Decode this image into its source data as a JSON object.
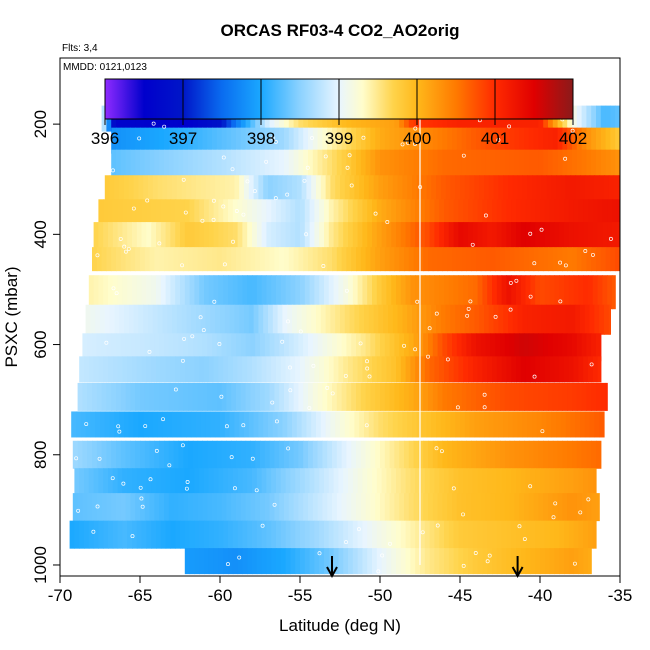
{
  "chart_data": {
    "type": "heatmap",
    "title": "ORCAS RF03-4 CO2_AO2orig",
    "flights_note": "Flts: 3,4",
    "date_note": "MMDD: 0121,0123",
    "xlabel": "Latitude (deg N)",
    "ylabel": "PSXC (mbar)",
    "xlim": [
      -70,
      -35
    ],
    "ylim": [
      1020,
      80
    ],
    "x_ticks": [
      -70,
      -65,
      -60,
      -55,
      -50,
      -45,
      -40,
      -35
    ],
    "x_tick_labels": [
      "-70",
      "-65",
      "-60",
      "-55",
      "-50",
      "-45",
      "-40",
      "-35"
    ],
    "y_ticks": [
      200,
      400,
      600,
      800,
      1000
    ],
    "y_tick_labels": [
      "200",
      "400",
      "600",
      "800",
      "1000"
    ],
    "colorbar": {
      "min": 396,
      "max": 402,
      "ticks": [
        396,
        397,
        398,
        399,
        400,
        401,
        402
      ],
      "tick_labels": [
        "396",
        "397",
        "398",
        "399",
        "400",
        "401",
        "402"
      ],
      "stops": [
        {
          "v": 396.0,
          "c": "#8f2bff"
        },
        {
          "v": 396.5,
          "c": "#0000cc"
        },
        {
          "v": 397.0,
          "c": "#0016c8"
        },
        {
          "v": 397.5,
          "c": "#0a6cf0"
        },
        {
          "v": 398.0,
          "c": "#1aa8ff"
        },
        {
          "v": 398.5,
          "c": "#8cd2ff"
        },
        {
          "v": 399.0,
          "c": "#e8f5ff"
        },
        {
          "v": 399.3,
          "c": "#fffdcc"
        },
        {
          "v": 399.7,
          "c": "#ffd34a"
        },
        {
          "v": 400.0,
          "c": "#ffb81a"
        },
        {
          "v": 400.5,
          "c": "#ff7a00"
        },
        {
          "v": 401.0,
          "c": "#ff2a00"
        },
        {
          "v": 401.5,
          "c": "#e00000"
        },
        {
          "v": 402.0,
          "c": "#8b1a1a"
        }
      ]
    },
    "reference_line_lat": -47.5,
    "arrows_lat": [
      -53.0,
      -41.4
    ],
    "profiles": [
      {
        "p": 190,
        "h": 26,
        "lat_start": -67.4,
        "lat_end": -35.0,
        "knots": [
          [
            -67.4,
            399.2
          ],
          [
            -66.6,
            396.6
          ],
          [
            -62,
            396.5
          ],
          [
            -60,
            396.9
          ],
          [
            -59,
            397.6
          ],
          [
            -57,
            398.9
          ],
          [
            -55,
            399.6
          ],
          [
            -52,
            400.0
          ],
          [
            -49,
            400.2
          ],
          [
            -48,
            400.9
          ],
          [
            -45,
            401.1
          ],
          [
            -40,
            401.1
          ],
          [
            -38,
            399.2
          ],
          [
            -36,
            398.2
          ],
          [
            -35,
            398.3
          ]
        ]
      },
      {
        "p": 230,
        "h": 26,
        "lat_start": -66.8,
        "lat_end": -35.0,
        "knots": [
          [
            -66.8,
            397.8
          ],
          [
            -62,
            398.1
          ],
          [
            -56,
            398.6
          ],
          [
            -53,
            399.4
          ],
          [
            -50,
            400.1
          ],
          [
            -46,
            400.5
          ],
          [
            -42,
            400.9
          ],
          [
            -39,
            401.1
          ],
          [
            -37,
            400.3
          ],
          [
            -35,
            399.8
          ]
        ]
      },
      {
        "p": 270,
        "h": 26,
        "lat_start": -66.8,
        "lat_end": -35.0,
        "knots": [
          [
            -66.8,
            398.3
          ],
          [
            -60,
            398.7
          ],
          [
            -56,
            399.0
          ],
          [
            -54,
            399.4
          ],
          [
            -52,
            399.8
          ],
          [
            -50,
            400.3
          ],
          [
            -46,
            400.6
          ],
          [
            -40,
            400.7
          ],
          [
            -37,
            400.5
          ],
          [
            -35,
            400.3
          ]
        ]
      },
      {
        "p": 320,
        "h": 30,
        "lat_start": -67.2,
        "lat_end": -35.0,
        "knots": [
          [
            -67.2,
            399.8
          ],
          [
            -64,
            399.6
          ],
          [
            -59,
            399.4
          ],
          [
            -57,
            398.5
          ],
          [
            -55,
            398.7
          ],
          [
            -53,
            399.6
          ],
          [
            -50,
            400.2
          ],
          [
            -46,
            400.7
          ],
          [
            -42,
            401.0
          ],
          [
            -38,
            401.2
          ],
          [
            -35,
            401.1
          ]
        ]
      },
      {
        "p": 360,
        "h": 26,
        "lat_start": -67.6,
        "lat_end": -35.0,
        "knots": [
          [
            -67.6,
            399.8
          ],
          [
            -62,
            399.7
          ],
          [
            -57,
            399.0
          ],
          [
            -55,
            398.7
          ],
          [
            -53,
            399.4
          ],
          [
            -50,
            400.1
          ],
          [
            -46,
            400.7
          ],
          [
            -42,
            401.0
          ],
          [
            -38,
            401.2
          ],
          [
            -35,
            401.3
          ]
        ]
      },
      {
        "p": 405,
        "h": 30,
        "lat_start": -67.9,
        "lat_end": -35.0,
        "knots": [
          [
            -67.9,
            399.7
          ],
          [
            -64.5,
            399.3
          ],
          [
            -62,
            399.8
          ],
          [
            -59,
            399.6
          ],
          [
            -57,
            398.9
          ],
          [
            -55,
            398.7
          ],
          [
            -53,
            399.5
          ],
          [
            -50,
            400.2
          ],
          [
            -47,
            400.8
          ],
          [
            -45,
            401.4
          ],
          [
            -43,
            401.2
          ],
          [
            -41,
            401.5
          ],
          [
            -38,
            401.3
          ],
          [
            -35,
            401.2
          ]
        ]
      },
      {
        "p": 445,
        "h": 24,
        "lat_start": -68.0,
        "lat_end": -35.0,
        "knots": [
          [
            -68.0,
            399.7
          ],
          [
            -64,
            399.4
          ],
          [
            -60,
            399.5
          ],
          [
            -56,
            399.3
          ],
          [
            -53,
            399.6
          ],
          [
            -50,
            400.2
          ],
          [
            -47,
            400.6
          ],
          [
            -43,
            400.7
          ],
          [
            -38,
            400.5
          ],
          [
            -35,
            400.8
          ]
        ]
      },
      {
        "p": 505,
        "h": 34,
        "lat_start": -68.2,
        "lat_end": -35.3,
        "knots": [
          [
            -68.2,
            399.4
          ],
          [
            -64,
            399.1
          ],
          [
            -61,
            398.4
          ],
          [
            -58,
            398.2
          ],
          [
            -55,
            398.5
          ],
          [
            -52,
            399.2
          ],
          [
            -50,
            399.8
          ],
          [
            -48,
            400.3
          ],
          [
            -44,
            400.6
          ],
          [
            -42,
            401.3
          ],
          [
            -40,
            400.8
          ],
          [
            -37,
            401.0
          ],
          [
            -35.3,
            400.7
          ]
        ]
      },
      {
        "p": 555,
        "h": 30,
        "lat_start": -68.4,
        "lat_end": -35.6,
        "knots": [
          [
            -68.4,
            399.1
          ],
          [
            -64,
            398.8
          ],
          [
            -61,
            398.6
          ],
          [
            -58,
            398.4
          ],
          [
            -56,
            399.0
          ],
          [
            -52,
            399.6
          ],
          [
            -49,
            400.0
          ],
          [
            -46,
            400.5
          ],
          [
            -44,
            400.7
          ],
          [
            -41,
            401.1
          ],
          [
            -38,
            401.2
          ],
          [
            -35.6,
            400.8
          ]
        ]
      },
      {
        "p": 605,
        "h": 28,
        "lat_start": -68.6,
        "lat_end": -36.2,
        "knots": [
          [
            -68.6,
            398.9
          ],
          [
            -64,
            398.8
          ],
          [
            -61,
            398.7
          ],
          [
            -58,
            398.5
          ],
          [
            -55,
            398.9
          ],
          [
            -51,
            399.5
          ],
          [
            -48,
            400.1
          ],
          [
            -46,
            400.8
          ],
          [
            -44,
            401.3
          ],
          [
            -41,
            401.6
          ],
          [
            -38,
            401.4
          ],
          [
            -36.2,
            401.1
          ]
        ]
      },
      {
        "p": 645,
        "h": 26,
        "lat_start": -68.8,
        "lat_end": -36.2,
        "knots": [
          [
            -68.8,
            398.8
          ],
          [
            -64,
            398.6
          ],
          [
            -61,
            398.5
          ],
          [
            -58,
            398.7
          ],
          [
            -55,
            399.0
          ],
          [
            -52,
            399.5
          ],
          [
            -49,
            399.9
          ],
          [
            -47,
            400.6
          ],
          [
            -44,
            401.1
          ],
          [
            -41,
            401.5
          ],
          [
            -38,
            401.3
          ],
          [
            -36.2,
            401.0
          ]
        ]
      },
      {
        "p": 695,
        "h": 28,
        "lat_start": -68.9,
        "lat_end": -35.8,
        "knots": [
          [
            -68.9,
            398.7
          ],
          [
            -65,
            398.4
          ],
          [
            -60,
            398.3
          ],
          [
            -57,
            398.6
          ],
          [
            -54,
            399.2
          ],
          [
            -51,
            399.7
          ],
          [
            -48,
            400.1
          ],
          [
            -46,
            400.5
          ],
          [
            -42,
            400.8
          ],
          [
            -38,
            400.9
          ],
          [
            -35.8,
            401.0
          ]
        ]
      },
      {
        "p": 745,
        "h": 26,
        "lat_start": -69.3,
        "lat_end": -36.0,
        "knots": [
          [
            -69.3,
            398.2
          ],
          [
            -65,
            398.0
          ],
          [
            -60,
            398.1
          ],
          [
            -56,
            398.5
          ],
          [
            -53,
            399.1
          ],
          [
            -50,
            399.6
          ],
          [
            -47,
            399.9
          ],
          [
            -44,
            400.2
          ],
          [
            -40,
            400.4
          ],
          [
            -36,
            400.7
          ]
        ]
      },
      {
        "p": 800,
        "h": 28,
        "lat_start": -69.2,
        "lat_end": -36.2,
        "knots": [
          [
            -69.2,
            398.6
          ],
          [
            -66,
            398.3
          ],
          [
            -62,
            398.0
          ],
          [
            -58,
            398.1
          ],
          [
            -55,
            398.4
          ],
          [
            -52,
            399.0
          ],
          [
            -49,
            399.5
          ],
          [
            -46,
            400.0
          ],
          [
            -42,
            400.3
          ],
          [
            -38,
            400.5
          ],
          [
            -36.2,
            400.6
          ]
        ]
      },
      {
        "p": 848,
        "h": 26,
        "lat_start": -69.1,
        "lat_end": -36.5,
        "knots": [
          [
            -69.1,
            398.4
          ],
          [
            -66,
            398.1
          ],
          [
            -62,
            398.0
          ],
          [
            -58,
            398.2
          ],
          [
            -55,
            398.6
          ],
          [
            -51,
            399.2
          ],
          [
            -48,
            399.6
          ],
          [
            -45,
            399.9
          ],
          [
            -42,
            400.0
          ],
          [
            -38,
            400.2
          ],
          [
            -36.5,
            400.3
          ]
        ]
      },
      {
        "p": 895,
        "h": 28,
        "lat_start": -69.2,
        "lat_end": -36.3,
        "knots": [
          [
            -69.2,
            398.3
          ],
          [
            -66,
            398.4
          ],
          [
            -63,
            398.1
          ],
          [
            -60,
            398.2
          ],
          [
            -57,
            398.4
          ],
          [
            -54,
            398.8
          ],
          [
            -51,
            399.2
          ],
          [
            -48,
            399.6
          ],
          [
            -45,
            399.9
          ],
          [
            -42,
            400.0
          ],
          [
            -38,
            400.3
          ],
          [
            -36.3,
            400.2
          ]
        ]
      },
      {
        "p": 945,
        "h": 28,
        "lat_start": -69.4,
        "lat_end": -36.5,
        "knots": [
          [
            -69.4,
            398.0
          ],
          [
            -66,
            398.2
          ],
          [
            -63,
            398.0
          ],
          [
            -60,
            398.1
          ],
          [
            -57,
            398.3
          ],
          [
            -54,
            398.6
          ],
          [
            -51,
            399.0
          ],
          [
            -48,
            399.4
          ],
          [
            -45,
            399.8
          ],
          [
            -42,
            399.9
          ],
          [
            -39,
            400.0
          ],
          [
            -36.5,
            400.2
          ]
        ]
      },
      {
        "p": 993,
        "h": 26,
        "lat_start": -62.2,
        "lat_end": -36.8,
        "knots": [
          [
            -62.2,
            397.9
          ],
          [
            -59,
            397.8
          ],
          [
            -56,
            398.0
          ],
          [
            -53,
            398.4
          ],
          [
            -50,
            399.0
          ],
          [
            -47,
            399.5
          ],
          [
            -44,
            399.8
          ],
          [
            -41,
            400.0
          ],
          [
            -38,
            400.2
          ],
          [
            -36.8,
            400.1
          ]
        ]
      }
    ]
  }
}
